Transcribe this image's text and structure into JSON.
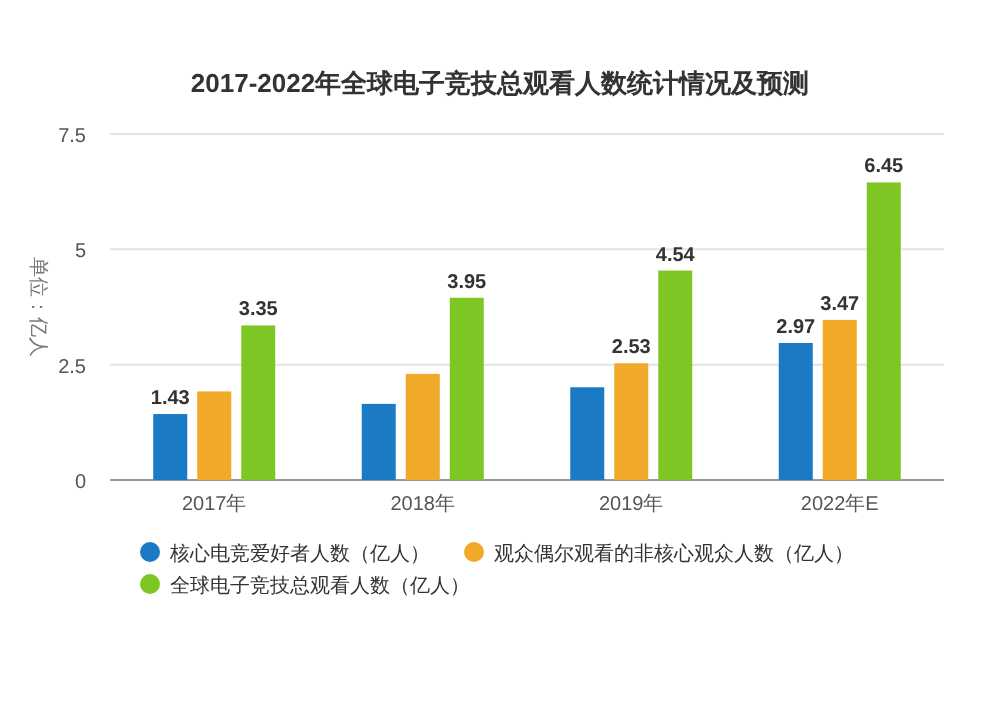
{
  "chart_data": {
    "type": "bar",
    "title": "2017-2022年全球电子竞技总观看人数统计情况及预测",
    "ylabel": "单位：亿人",
    "categories": [
      "2017年",
      "2018年",
      "2019年",
      "2022年E"
    ],
    "series": [
      {
        "name": "核心电竞爱好者人数（亿人）",
        "color": "#1a7ac4",
        "values": [
          1.43,
          1.65,
          2.01,
          2.97
        ],
        "value_labels": [
          "1.43",
          null,
          null,
          "2.97"
        ]
      },
      {
        "name": "观众偶尔观看的非核心观众人数（亿人）",
        "color": "#f0a928",
        "values": [
          1.92,
          2.3,
          2.53,
          3.47
        ],
        "value_labels": [
          null,
          null,
          "2.53",
          "3.47"
        ]
      },
      {
        "name": "全球电子竞技总观看人数（亿人）",
        "color": "#7dc623",
        "values": [
          3.35,
          3.95,
          4.54,
          6.45
        ],
        "value_labels": [
          "3.35",
          "3.95",
          "4.54",
          "6.45"
        ]
      }
    ],
    "ylim": [
      0,
      7.5
    ],
    "yticks": [
      0,
      2.5,
      5,
      7.5
    ],
    "grid": "y",
    "legend": "bottom"
  }
}
